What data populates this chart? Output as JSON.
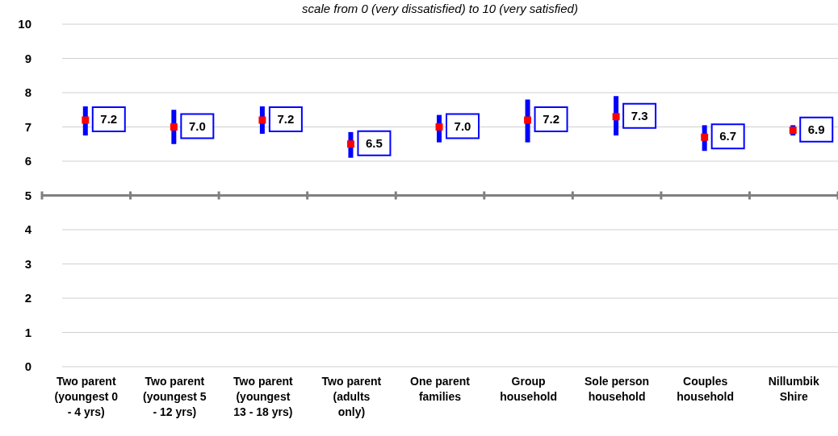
{
  "chart_data": {
    "type": "scatter",
    "subtitle": "scale from 0 (very dissatisfied) to 10 (very satisfied)",
    "categories": [
      "Two parent (youngest 0 - 4 yrs)",
      "Two parent (youngest 5 - 12 yrs)",
      "Two parent (youngest 13 - 18 yrs)",
      "Two parent (adults only)",
      "One parent families",
      "Group household",
      "Sole person household",
      "Couples household",
      "Nillumbik Shire"
    ],
    "series": [
      {
        "color": "#ff0000",
        "values": [
          7.2,
          7.0,
          7.2,
          6.5,
          7.0,
          7.2,
          7.3,
          6.7,
          6.9
        ],
        "value_labels": [
          "7.2",
          "7.0",
          "7.2",
          "6.5",
          "7.0",
          "7.2",
          "7.3",
          "6.7",
          "6.9"
        ],
        "errors": [
          [
            6.75,
            7.6
          ],
          [
            6.5,
            7.5
          ],
          [
            6.8,
            7.6
          ],
          [
            6.1,
            6.85
          ],
          [
            6.55,
            7.35
          ],
          [
            6.55,
            7.8
          ],
          [
            6.75,
            7.9
          ],
          [
            6.3,
            7.05
          ],
          [
            6.75,
            7.05
          ]
        ]
      }
    ],
    "ylim": [
      0,
      10
    ],
    "yticks": [
      0,
      1,
      2,
      3,
      4,
      5,
      6,
      7,
      8,
      9,
      10
    ],
    "ref_lines": [
      {
        "axis": "y",
        "value": 5,
        "color": "#808080"
      }
    ],
    "grid": "y",
    "marker": "square"
  }
}
